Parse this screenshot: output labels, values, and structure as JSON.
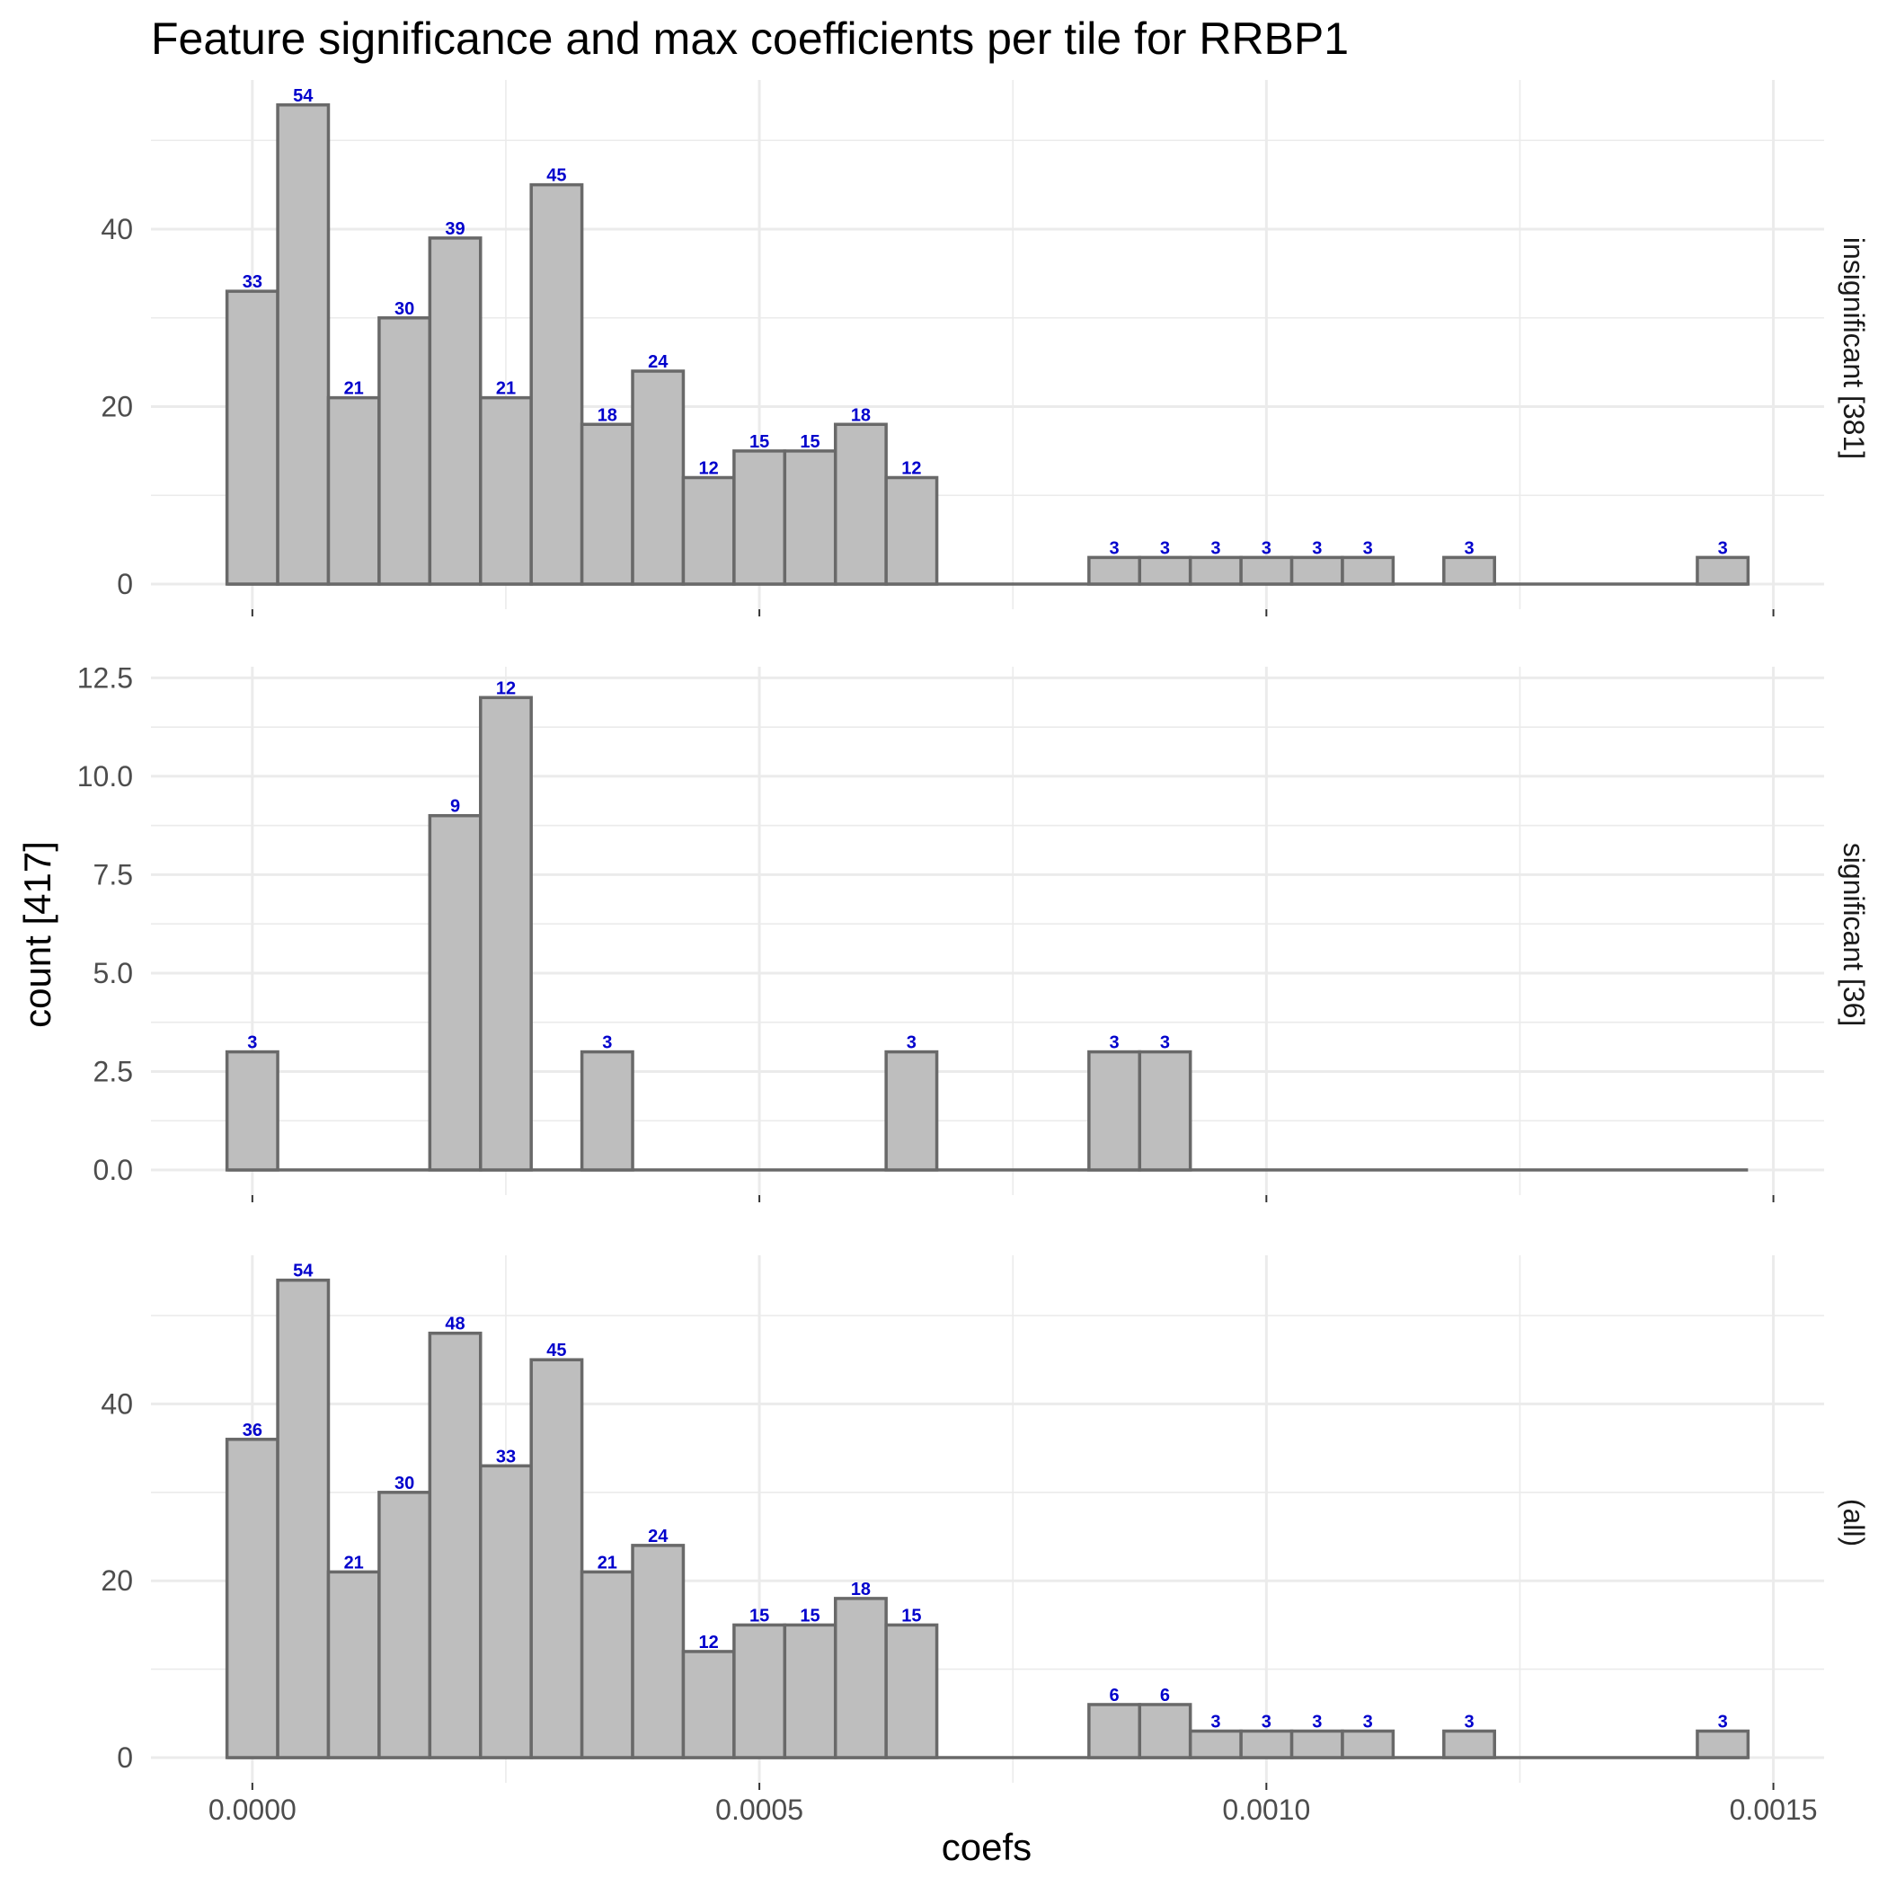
{
  "chart_data": {
    "type": "bar",
    "title": "Feature significance and max coefficients per tile for RRBP1",
    "xlabel": "coefs",
    "ylabel": "count [417]",
    "bin_width": 5e-05,
    "x_ticks": [
      0,
      0.0005,
      0.001,
      0.0015
    ],
    "x_tick_labels": [
      "0.0000",
      "0.0005",
      "0.0010",
      "0.0015"
    ],
    "xlim": [
      -0.0001,
      0.00155
    ],
    "bins_x": [
      0,
      5e-05,
      0.0001,
      0.00015,
      0.0002,
      0.00025,
      0.0003,
      0.00035,
      0.0004,
      0.00045,
      0.0005,
      0.00055,
      0.0006,
      0.00065,
      0.0007,
      0.00075,
      0.0008,
      0.00085,
      0.0009,
      0.00095,
      0.001,
      0.00105,
      0.0011,
      0.00115,
      0.0012,
      0.00125,
      0.0013,
      0.00135,
      0.0014,
      0.00145
    ],
    "panels": [
      {
        "strip": "insignificant [381]",
        "ylim": [
          0,
          56
        ],
        "y_ticks": [
          0,
          20,
          40
        ],
        "y_tick_labels": [
          "0",
          "20",
          "40"
        ],
        "values": [
          33,
          54,
          21,
          30,
          39,
          21,
          45,
          18,
          24,
          12,
          15,
          15,
          18,
          12,
          0,
          0,
          0,
          3,
          3,
          3,
          3,
          3,
          3,
          0,
          3,
          0,
          0,
          0,
          0,
          3
        ]
      },
      {
        "strip": "significant [36]",
        "ylim": [
          0,
          12.6
        ],
        "y_ticks": [
          0,
          2.5,
          5,
          7.5,
          10,
          12.5
        ],
        "y_tick_labels": [
          "0.0",
          "2.5",
          "5.0",
          "7.5",
          "10.0",
          "12.5"
        ],
        "values": [
          3,
          0,
          0,
          0,
          9,
          12,
          0,
          3,
          0,
          0,
          0,
          0,
          0,
          3,
          0,
          0,
          0,
          3,
          3,
          0,
          0,
          0,
          0,
          0,
          0,
          0,
          0,
          0,
          0,
          0
        ]
      },
      {
        "strip": "(all)",
        "ylim": [
          0,
          56
        ],
        "y_ticks": [
          0,
          20,
          40
        ],
        "y_tick_labels": [
          "0",
          "20",
          "40"
        ],
        "values": [
          36,
          54,
          21,
          30,
          48,
          33,
          45,
          21,
          24,
          12,
          15,
          15,
          18,
          15,
          0,
          0,
          0,
          6,
          6,
          3,
          3,
          3,
          3,
          0,
          3,
          0,
          0,
          0,
          0,
          3
        ]
      }
    ]
  }
}
